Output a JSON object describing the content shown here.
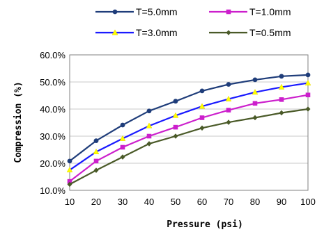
{
  "chart_data": {
    "type": "line",
    "title": "",
    "xlabel": "Pressure (psi)",
    "ylabel": "Compression (%)",
    "x": [
      10,
      20,
      30,
      40,
      50,
      60,
      70,
      80,
      90,
      100
    ],
    "xlim": [
      10,
      100
    ],
    "ylim": [
      10,
      60
    ],
    "x_ticks": [
      "10",
      "20",
      "30",
      "40",
      "50",
      "60",
      "70",
      "80",
      "90",
      "100"
    ],
    "y_ticks": [
      "10.0%",
      "20.0%",
      "30.0%",
      "40.0%",
      "50.0%",
      "60.0%"
    ],
    "grid": "horizontal",
    "legend_position": "top",
    "series": [
      {
        "name": "T=5.0mm",
        "color": "#1f3d7a",
        "marker": "circle",
        "values": [
          20.8,
          28.3,
          34.1,
          39.3,
          42.9,
          46.7,
          49.1,
          50.8,
          52.1,
          52.6
        ]
      },
      {
        "name": "T=1.0mm",
        "color": "#cc1fcc",
        "marker": "square",
        "values": [
          13.3,
          20.8,
          25.9,
          30.0,
          33.3,
          36.8,
          39.6,
          42.1,
          43.5,
          45.2
        ]
      },
      {
        "name": "T=3.0mm",
        "color": "#1a1aff",
        "marker": "triangle",
        "values": [
          17.5,
          24.2,
          29.1,
          33.8,
          37.6,
          41.0,
          43.7,
          46.2,
          48.1,
          49.6
        ]
      },
      {
        "name": "T=0.5mm",
        "color": "#4a5a28",
        "marker": "diamond",
        "values": [
          12.2,
          17.4,
          22.3,
          27.2,
          30.0,
          33.0,
          35.1,
          36.8,
          38.6,
          40.0
        ]
      }
    ]
  }
}
